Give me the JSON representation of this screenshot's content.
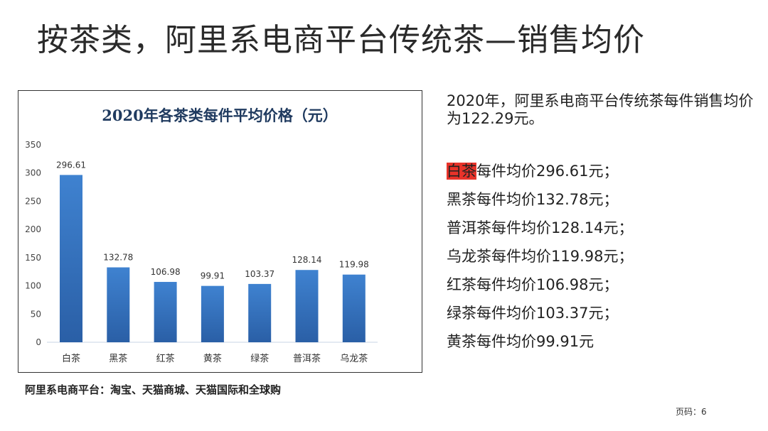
{
  "slide": {
    "title": "按茶类，阿里系电商平台传统茶—销售均价",
    "summary": "2020年，阿里系电商平台传统茶每件销售均价为122.29元。",
    "items": [
      {
        "name": "白茶",
        "text": "每件均价296.61元；",
        "highlight": true
      },
      {
        "name": "黑茶",
        "text": "每件均价132.78元；"
      },
      {
        "name": "普洱茶",
        "text": "每件均价128.14元；"
      },
      {
        "name": "乌龙茶",
        "text": "每件均价119.98元；"
      },
      {
        "name": "红茶",
        "text": "每件均价106.98元；"
      },
      {
        "name": "绿茶",
        "text": "每件均价103.37元；"
      },
      {
        "name": "黄茶",
        "text": "每件均价99.91元"
      }
    ],
    "caption": "阿里系电商平台：淘宝、天猫商城、天猫国际和全球购",
    "page_number": "页码：6",
    "highlight_color": "#e8332a"
  },
  "chart_data": {
    "type": "bar",
    "title": "2020年各茶类每件平均价格（元）",
    "categories": [
      "白茶",
      "黑茶",
      "红茶",
      "黄茶",
      "绿茶",
      "普洱茶",
      "乌龙茶"
    ],
    "values": [
      296.61,
      132.78,
      106.98,
      99.91,
      103.37,
      128.14,
      119.98
    ],
    "value_labels": [
      "296.61",
      "132.78",
      "106.98",
      "99.91",
      "103.37",
      "128.14",
      "119.98"
    ],
    "yticks": [
      "0",
      "50",
      "100",
      "150",
      "200",
      "250",
      "300",
      "350"
    ],
    "ylim": [
      0,
      350
    ],
    "xlabel": "",
    "ylabel": "",
    "grid": false,
    "bar_color": "#3a78c4"
  }
}
